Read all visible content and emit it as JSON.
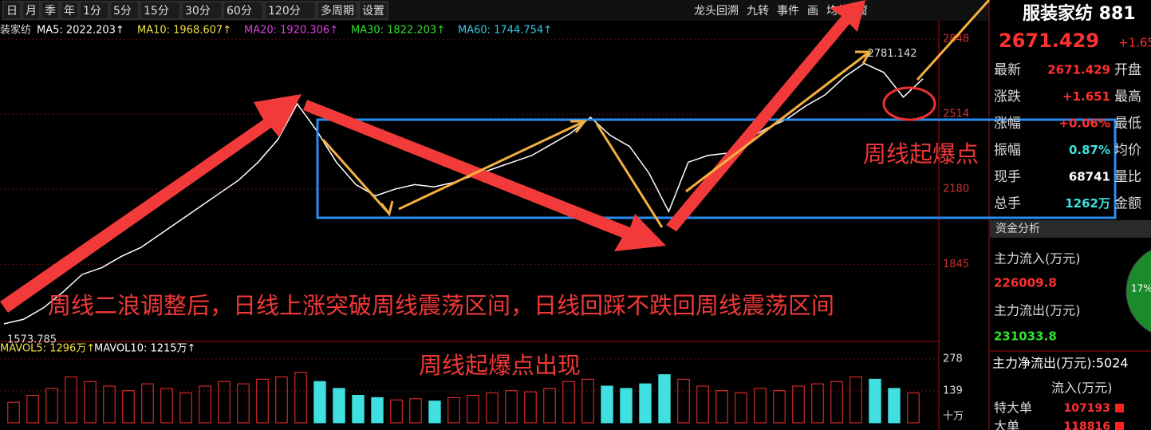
{
  "toolbar": {
    "periods": [
      "日",
      "月",
      "季",
      "年",
      "1分",
      "5分",
      "15分",
      "30分",
      "60分",
      "120分",
      "多周期",
      "设置"
    ],
    "tools": [
      "龙头回溯",
      "九转",
      "事件",
      "画",
      "均线",
      "窗"
    ]
  },
  "legend": {
    "name": "装家纺",
    "items": [
      {
        "label": "MA5: 2022.203↑",
        "color": "#ffffff"
      },
      {
        "label": "MA10: 1968.607↑",
        "color": "#f0e040"
      },
      {
        "label": "MA20: 1920.306↑",
        "color": "#e040e0"
      },
      {
        "label": "MA30: 1822.203↑",
        "color": "#30e030"
      },
      {
        "label": "MA60: 1744.754↑",
        "color": "#30c8e8"
      }
    ]
  },
  "chart_data": [
    {
      "type": "line",
      "color": "#ffffff",
      "ylim": [
        1512,
        2916
      ],
      "yticks": [
        1845,
        2180,
        2514,
        2848
      ],
      "values": [
        1580,
        1600,
        1650,
        1720,
        1800,
        1830,
        1880,
        1920,
        1980,
        2040,
        2100,
        2160,
        2220,
        2300,
        2400,
        2560,
        2440,
        2300,
        2200,
        2150,
        2180,
        2200,
        2190,
        2210,
        2240,
        2270,
        2300,
        2330,
        2380,
        2430,
        2500,
        2420,
        2370,
        2250,
        2080,
        2300,
        2330,
        2340,
        2400,
        2450,
        2490,
        2550,
        2600,
        2680,
        2740,
        2700,
        2590,
        2671.429
      ],
      "high_label": "2781.142",
      "low_label": "1573.785"
    },
    {
      "type": "bar",
      "legend": [
        "MAVOL5: 1296万↑",
        "MAVOL10: 1215万↑"
      ],
      "colors": [
        "#ff3030",
        "#40e0e0"
      ],
      "ylim": [
        0,
        306
      ],
      "yticks": [
        139,
        278
      ],
      "unit": "十万",
      "values": [
        90,
        120,
        150,
        200,
        180,
        160,
        140,
        170,
        150,
        130,
        160,
        180,
        170,
        190,
        200,
        220,
        180,
        150,
        120,
        110,
        100,
        105,
        95,
        110,
        120,
        130,
        140,
        135,
        150,
        180,
        190,
        160,
        150,
        170,
        210,
        190,
        160,
        140,
        130,
        150,
        140,
        160,
        170,
        180,
        200,
        190,
        150,
        130
      ]
    }
  ],
  "annotations": {
    "main": "周线二浪调整后，日线上涨突破周线震荡区间，日线回踩不跌回周线震荡区间",
    "sub": "周线起爆点出现",
    "burst": "周线起爆点"
  },
  "quote": {
    "title": "服装家纺 881",
    "price": "2671.429",
    "change": "+1.65",
    "rows": [
      [
        "最新",
        "2671.429",
        "开盘"
      ],
      [
        "涨跌",
        "+1.651",
        "最高"
      ],
      [
        "涨幅",
        "+0.06%",
        "最低"
      ],
      [
        "振幅",
        "0.87%",
        "均价"
      ],
      [
        "现手",
        "68741",
        "量比"
      ],
      [
        "总手",
        "1262万",
        "金额"
      ]
    ]
  },
  "fund": {
    "title": "资金分析",
    "inflow_label": "主力流入(万元)",
    "inflow": "226009.8",
    "outflow_label": "主力流出(万元)",
    "outflow": "231033.8",
    "net_label": "主力净流出(万元):5024",
    "pie_label": "17%",
    "col_header": "流入(万元)",
    "rows": [
      [
        "特大单",
        "107193"
      ],
      [
        "大单",
        "118816"
      ]
    ]
  }
}
